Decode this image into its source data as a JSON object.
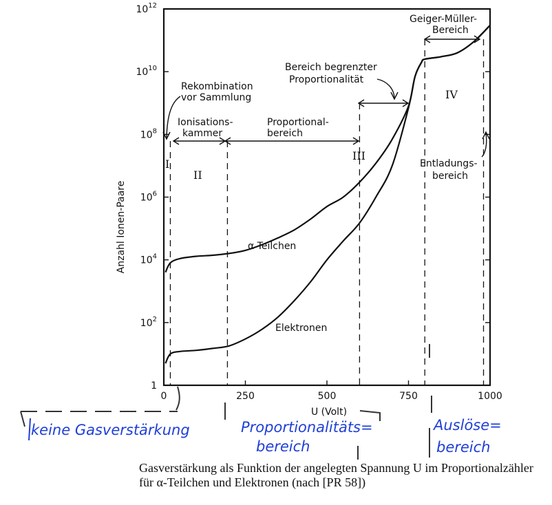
{
  "chart_data": {
    "type": "line",
    "title": "",
    "xlabel": "U (Volt)",
    "ylabel": "Anzahl Ionen-Paare",
    "xlim": [
      0,
      1000
    ],
    "ylim": [
      1,
      1000000000000
    ],
    "yscale": "log",
    "x_ticks": [
      "0",
      "250",
      "500",
      "750",
      "1000"
    ],
    "y_ticks": [
      "1",
      "10^2",
      "10^4",
      "10^6",
      "10^8",
      "10^10",
      "10^12"
    ],
    "grid": false,
    "series": [
      {
        "name": "α Teilchen",
        "x": [
          5,
          20,
          50,
          100,
          150,
          200,
          250,
          300,
          350,
          400,
          450,
          500,
          550,
          600,
          650,
          700,
          750,
          770,
          790,
          800,
          850,
          900,
          950,
          1000
        ],
        "y": [
          4000,
          8000,
          11000,
          13000,
          14000,
          16000,
          20000,
          30000,
          50000,
          90000,
          200000,
          500000,
          1000000,
          3000000,
          12000000,
          70000000,
          800000000,
          7000000000,
          20000000000,
          25000000000,
          30000000000,
          40000000000,
          90000000000,
          300000000000
        ]
      },
      {
        "name": "Elektronen",
        "x": [
          5,
          20,
          50,
          100,
          150,
          200,
          250,
          300,
          350,
          400,
          450,
          500,
          550,
          600,
          650,
          700,
          750,
          770,
          790,
          800,
          850,
          900,
          950,
          1000
        ],
        "y": [
          5,
          10,
          12,
          13,
          15,
          18,
          30,
          60,
          150,
          500,
          2000,
          10000,
          40000,
          150000,
          1000000,
          10000000,
          700000000,
          7000000000,
          20000000000,
          25000000000,
          30000000000,
          40000000000,
          90000000000,
          300000000000
        ]
      }
    ],
    "annotations": {
      "rekombination": [
        "Rekombination",
        "vor Sammlung"
      ],
      "ionisationskammer": [
        "Ionisations-",
        "kammer"
      ],
      "proportionalbereich": [
        "Proportional-",
        "bereich"
      ],
      "begrenzt": [
        "Bereich begrenzter",
        "Proportionalität"
      ],
      "geiger": [
        "Geiger-Müller-",
        "Bereich"
      ],
      "entladung": [
        "Entladungs-",
        "bereich"
      ],
      "region_I": "I",
      "region_II": "II",
      "region_III": "III",
      "region_IV": "IV"
    },
    "boundaries_volt": [
      20,
      195,
      600,
      800,
      980
    ]
  },
  "handwritten": {
    "keine": "keine Gasverstärkung",
    "prop1": "Proportionalitäts=",
    "prop2": "bereich",
    "ausloese1": "Auslöse=",
    "ausloese2": "bereich"
  },
  "caption": "Gasverstärkung als Funktion der angelegten Spannung U im Proportionalzähler für α-Teilchen und Elektronen (nach [PR 58])"
}
